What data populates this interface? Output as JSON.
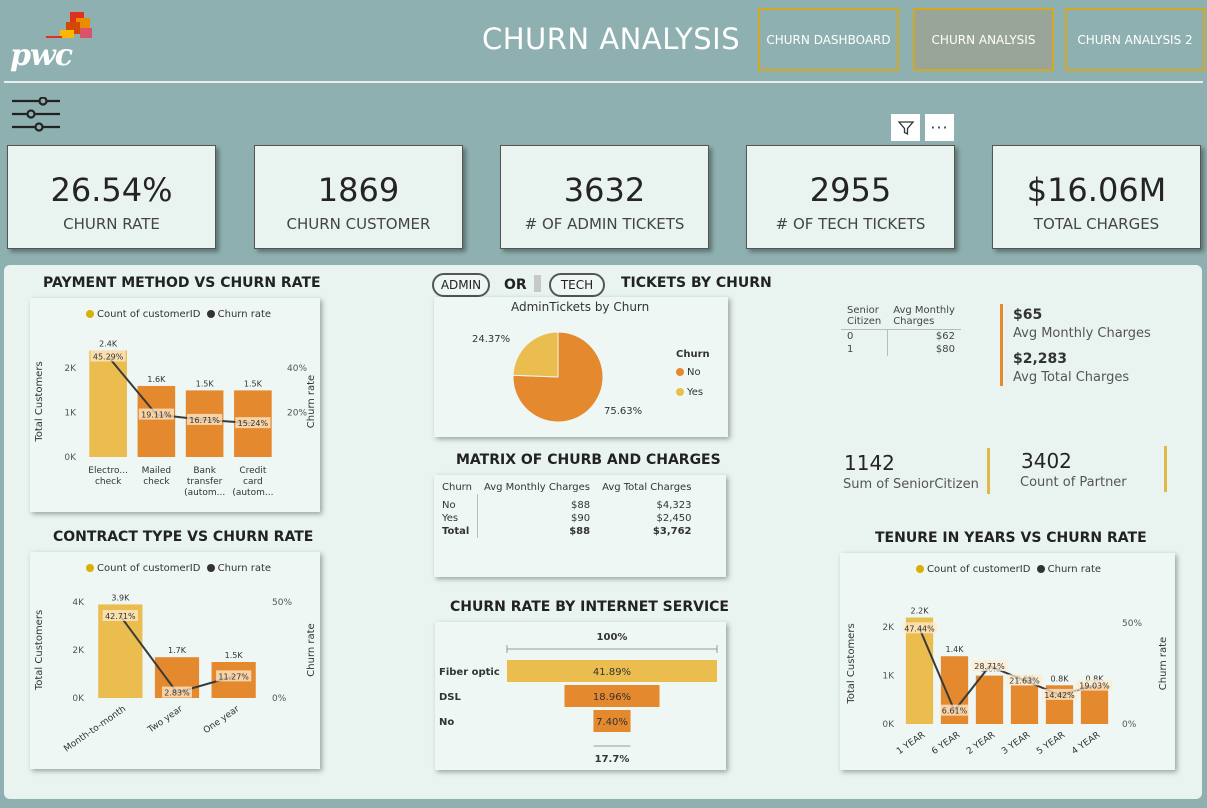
{
  "header": {
    "logo_text": "pwc",
    "title": "CHURN ANALYSIS",
    "nav": [
      {
        "label": "CHURN DASHBOARD"
      },
      {
        "label": "CHURN ANALYSIS"
      },
      {
        "label": "CHURN ANALYSIS 2"
      }
    ]
  },
  "toolbar": {
    "filter_icon": "filter-icon",
    "more_icon": "more-options-icon",
    "slicer_icon": "slicer-icon"
  },
  "kpis": [
    {
      "value": "26.54%",
      "label": "CHURN RATE"
    },
    {
      "value": "1869",
      "label": "CHURN CUSTOMER"
    },
    {
      "value": "3632",
      "label": "# OF ADMIN TICKETS"
    },
    {
      "value": "2955",
      "label": "# OF TECH TICKETS"
    },
    {
      "value": "$16.06M",
      "label": "TOTAL CHARGES"
    }
  ],
  "colors": {
    "bar_yellow": "#ebbd4f",
    "bar_orange": "#e5892f",
    "line": "#3a3a3a",
    "accent_gold": "#d4a820",
    "legend_yellow": "#d9b100"
  },
  "payment": {
    "title": "PAYMENT METHOD VS CHURN RATE",
    "legend": [
      "Count of customerID",
      "Churn rate"
    ],
    "ylabel": "Total Customers",
    "y2label": "Churn rate",
    "yticks": [
      "2K",
      "1K",
      "0K"
    ],
    "y2ticks": [
      "40%",
      "20%"
    ],
    "categories": [
      "Electro...\ncheck",
      "Mailed\ncheck",
      "Bank\ntransfer\n(autom...",
      "Credit\ncard\n(autom..."
    ],
    "count_labels": [
      "2.4K",
      "1.6K",
      "1.5K",
      "1.5K"
    ],
    "rate_labels": [
      "45.29%",
      "19.11%",
      "16.71%",
      "15.24%"
    ]
  },
  "contract": {
    "title": "CONTRACT TYPE VS CHURN RATE",
    "legend": [
      "Count of customerID",
      "Churn rate"
    ],
    "ylabel": "Total Customers",
    "y2label": "Churn rate",
    "yticks": [
      "4K",
      "2K",
      "0K"
    ],
    "y2ticks": [
      "50%",
      "0%"
    ],
    "categories": [
      "Month-to-month",
      "Two year",
      "One year"
    ],
    "count_labels": [
      "3.9K",
      "1.7K",
      "1.5K"
    ],
    "rate_labels": [
      "42.71%",
      "2.83%",
      "11.27%"
    ]
  },
  "tickets": {
    "pill_admin": "ADMIN",
    "or_text": "OR",
    "pill_tech": "TECH",
    "title": "TICKETS BY CHURN",
    "pie_title": "AdminTickets by Churn",
    "legend_title": "Churn",
    "legend": [
      "No",
      "Yes"
    ],
    "labels": [
      "75.63%",
      "24.37%"
    ]
  },
  "matrix": {
    "title": "MATRIX OF CHURB AND CHARGES",
    "headers": [
      "Churn",
      "Avg Monthly Charges",
      "Avg Total Charges"
    ],
    "rows": [
      [
        "No",
        "$88",
        "$4,323"
      ],
      [
        "Yes",
        "$90",
        "$2,450"
      ],
      [
        "Total",
        "$88",
        "$3,762"
      ]
    ]
  },
  "internet": {
    "title": "CHURN RATE BY INTERNET SERVICE",
    "top_label": "100%",
    "bottom_label": "17.7%",
    "categories": [
      "Fiber optic",
      "DSL",
      "No"
    ],
    "labels": [
      "41.89%",
      "18.96%",
      "7.40%"
    ]
  },
  "senior": {
    "headers": [
      "Senior\nCitizen",
      "Avg Monthly\nCharges"
    ],
    "rows": [
      [
        "0",
        "$62"
      ],
      [
        "1",
        "$80"
      ]
    ],
    "avg_monthly_value": "$65",
    "avg_monthly_label": "Avg Monthly Charges",
    "avg_total_value": "$2,283",
    "avg_total_label": "Avg Total Charges"
  },
  "stats": [
    {
      "value": "1142",
      "label": "Sum of SeniorCitizen"
    },
    {
      "value": "3402",
      "label": "Count of Partner"
    }
  ],
  "tenure": {
    "title": "TENURE IN YEARS VS CHURN RATE",
    "legend": [
      "Count of customerID",
      "Churn rate"
    ],
    "ylabel": "Total Customers",
    "y2label": "Churn rate",
    "yticks": [
      "2K",
      "1K",
      "0K"
    ],
    "y2ticks": [
      "50%",
      "0%"
    ],
    "categories": [
      "1 YEAR",
      "6 YEAR",
      "2 YEAR",
      "3 YEAR",
      "5 YEAR",
      "4 YEAR"
    ],
    "count_labels": [
      "2.2K",
      "1.4K",
      "1.0K",
      "0.8K",
      "0.8K",
      "0.8K"
    ],
    "rate_labels": [
      "47.44%",
      "6.61%",
      "28.71%",
      "21.63%",
      "14.42%",
      "19.03%"
    ]
  },
  "chart_data": [
    {
      "type": "bar",
      "title": "PAYMENT METHOD VS CHURN RATE",
      "categories": [
        "Electronic check",
        "Mailed check",
        "Bank transfer (automatic)",
        "Credit card (automatic)"
      ],
      "series": [
        {
          "name": "Count of customerID",
          "values": [
            2400,
            1600,
            1500,
            1500
          ]
        },
        {
          "name": "Churn rate",
          "values": [
            45.29,
            19.11,
            16.71,
            15.24
          ]
        }
      ],
      "ylim": [
        0,
        2500
      ],
      "y2lim": [
        0,
        50
      ]
    },
    {
      "type": "bar",
      "title": "CONTRACT TYPE VS CHURN RATE",
      "categories": [
        "Month-to-month",
        "Two year",
        "One year"
      ],
      "series": [
        {
          "name": "Count of customerID",
          "values": [
            3900,
            1700,
            1500
          ]
        },
        {
          "name": "Churn rate",
          "values": [
            42.71,
            2.83,
            11.27
          ]
        }
      ],
      "ylim": [
        0,
        4000
      ],
      "y2lim": [
        0,
        50
      ]
    },
    {
      "type": "pie",
      "title": "AdminTickets by Churn",
      "categories": [
        "No",
        "Yes"
      ],
      "values": [
        75.63,
        24.37
      ]
    },
    {
      "type": "bar",
      "title": "CHURN RATE BY INTERNET SERVICE",
      "categories": [
        "Fiber optic",
        "DSL",
        "No"
      ],
      "values": [
        41.89,
        18.96,
        7.4
      ]
    },
    {
      "type": "bar",
      "title": "TENURE IN YEARS VS CHURN RATE",
      "categories": [
        "1 YEAR",
        "6 YEAR",
        "2 YEAR",
        "3 YEAR",
        "5 YEAR",
        "4 YEAR"
      ],
      "series": [
        {
          "name": "Count of customerID",
          "values": [
            2200,
            1400,
            1000,
            800,
            800,
            800
          ]
        },
        {
          "name": "Churn rate",
          "values": [
            47.44,
            6.61,
            28.71,
            21.63,
            14.42,
            19.03
          ]
        }
      ],
      "ylim": [
        0,
        2500
      ],
      "y2lim": [
        0,
        60
      ]
    }
  ]
}
